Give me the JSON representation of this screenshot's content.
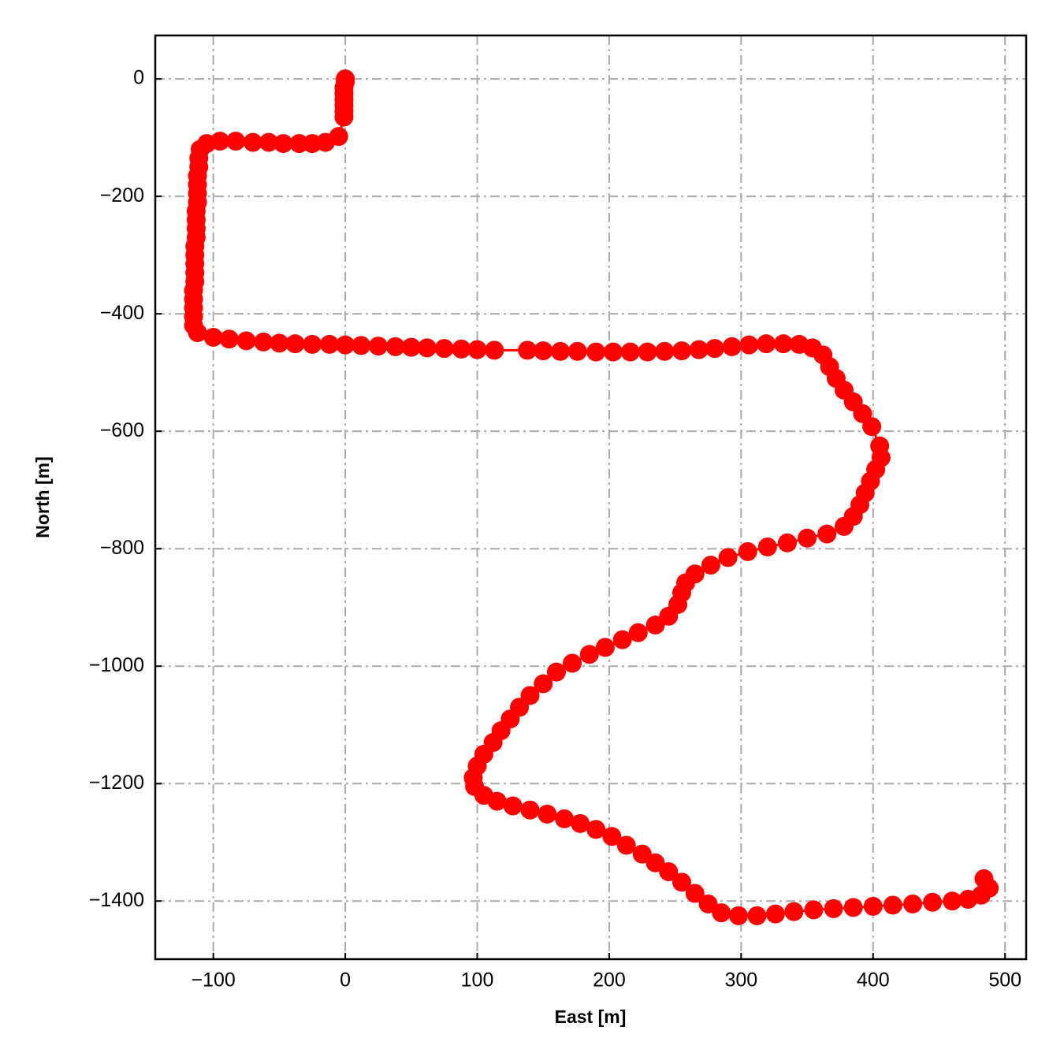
{
  "chart_data": {
    "type": "line",
    "xlabel": "East [m]",
    "ylabel": "North [m]",
    "color": "#ff0000",
    "grid": true,
    "x": [
      0,
      0,
      -1,
      -1,
      -1,
      -1,
      -1,
      -1,
      -5,
      -15,
      -25,
      -35,
      -47,
      -58,
      -70,
      -83,
      -95,
      -105,
      -110,
      -111,
      -111,
      -112,
      -112,
      -112,
      -112,
      -113,
      -113,
      -113,
      -113,
      -114,
      -114,
      -114,
      -114,
      -114,
      -115,
      -115,
      -115,
      -115,
      -115,
      -112,
      -100,
      -88,
      -75,
      -62,
      -50,
      -38,
      -25,
      -12,
      0,
      12,
      25,
      38,
      50,
      62,
      75,
      88,
      100,
      113,
      138,
      150,
      163,
      176,
      190,
      203,
      216,
      229,
      242,
      255,
      268,
      280,
      293,
      306,
      319,
      332,
      344,
      354,
      362,
      367,
      372,
      378,
      385,
      392,
      399,
      405,
      406,
      402,
      398,
      394,
      390,
      385,
      378,
      365,
      350,
      335,
      320,
      305,
      290,
      277,
      265,
      258,
      255,
      252,
      245,
      235,
      222,
      210,
      197,
      185,
      172,
      160,
      150,
      140,
      132,
      125,
      118,
      112,
      105,
      100,
      97,
      98,
      105,
      115,
      127,
      140,
      153,
      166,
      178,
      190,
      202,
      213,
      225,
      235,
      245,
      255,
      265,
      275,
      285,
      298,
      312,
      326,
      340,
      355,
      370,
      385,
      400,
      415,
      430,
      445,
      460,
      472,
      482,
      488,
      484
    ],
    "values": [
      0,
      -5,
      -15,
      -25,
      -35,
      -45,
      -55,
      -65,
      -98,
      -108,
      -110,
      -110,
      -110,
      -108,
      -108,
      -106,
      -106,
      -110,
      -120,
      -135,
      -150,
      -165,
      -180,
      -195,
      -210,
      -225,
      -240,
      -255,
      -270,
      -285,
      -300,
      -315,
      -330,
      -345,
      -360,
      -375,
      -390,
      -405,
      -420,
      -432,
      -440,
      -443,
      -446,
      -448,
      -450,
      -451,
      -452,
      -452,
      -453,
      -454,
      -455,
      -456,
      -457,
      -458,
      -459,
      -460,
      -461,
      -462,
      -462,
      -463,
      -464,
      -464,
      -465,
      -465,
      -465,
      -465,
      -464,
      -463,
      -461,
      -459,
      -456,
      -453,
      -451,
      -451,
      -452,
      -458,
      -470,
      -490,
      -510,
      -530,
      -550,
      -570,
      -592,
      -625,
      -645,
      -665,
      -685,
      -705,
      -725,
      -745,
      -762,
      -775,
      -782,
      -790,
      -797,
      -805,
      -815,
      -828,
      -843,
      -858,
      -875,
      -895,
      -915,
      -930,
      -943,
      -955,
      -968,
      -980,
      -995,
      -1010,
      -1030,
      -1050,
      -1070,
      -1090,
      -1110,
      -1130,
      -1150,
      -1170,
      -1190,
      -1205,
      -1220,
      -1230,
      -1238,
      -1245,
      -1252,
      -1260,
      -1268,
      -1278,
      -1290,
      -1305,
      -1320,
      -1335,
      -1350,
      -1368,
      -1387,
      -1405,
      -1420,
      -1425,
      -1425,
      -1422,
      -1418,
      -1415,
      -1413,
      -1411,
      -1409,
      -1407,
      -1405,
      -1402,
      -1400,
      -1397,
      -1390,
      -1378,
      -1362
    ],
    "xlim": [
      -144,
      516
    ],
    "ylim": [
      -1499,
      74
    ],
    "xticks": [
      {
        "value": -100,
        "label": "−100"
      },
      0,
      100,
      200,
      300,
      400,
      500
    ],
    "yticks": [
      0,
      {
        "value": -200,
        "label": "−200"
      },
      {
        "value": -400,
        "label": "−400"
      },
      {
        "value": -600,
        "label": "−600"
      },
      {
        "value": -800,
        "label": "−800"
      },
      {
        "value": -1000,
        "label": "−1000"
      },
      {
        "value": -1200,
        "label": "−1200"
      },
      {
        "value": -1400,
        "label": "−1400"
      }
    ]
  }
}
